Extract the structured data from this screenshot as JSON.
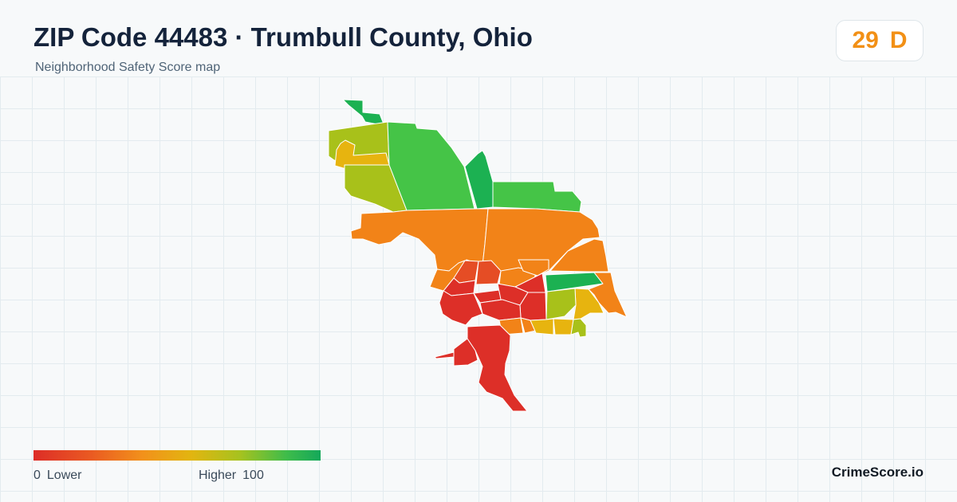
{
  "header": {
    "title": "ZIP Code 44483 · Trumbull County, Ohio",
    "subtitle": "Neighborhood Safety Score map"
  },
  "score": {
    "value": "29",
    "grade": "D",
    "color": "#f29016"
  },
  "legend": {
    "min_value": "0",
    "min_label": "Lower",
    "max_label": "Higher",
    "max_value": "100",
    "gradient": [
      "#dd2d27",
      "#ea5a22",
      "#f2911b",
      "#e2b510",
      "#a6c21f",
      "#3fbc4a",
      "#14a85a"
    ]
  },
  "brand": "CrimeScore.io",
  "colors": {
    "dark_green": "#1cb152",
    "green": "#45c447",
    "yellow_green": "#a8c11a",
    "yellow": "#e7b40f",
    "orange": "#f28318",
    "dark_orange": "#ec6224",
    "orange_red": "#e54d25",
    "red": "#dd2f28"
  }
}
